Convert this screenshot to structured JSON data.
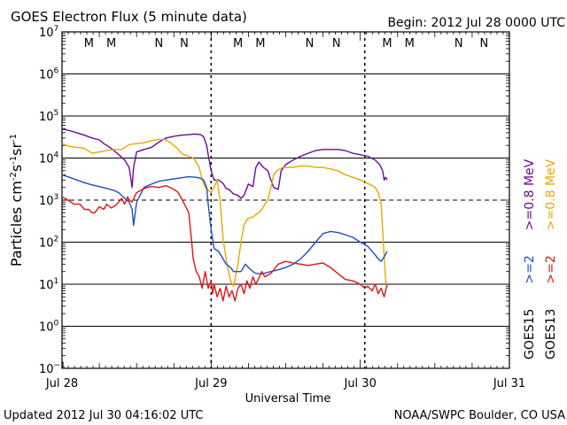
{
  "chart_data": {
    "type": "line",
    "title": "GOES Electron Flux (5 minute data)",
    "begin_label": "Begin: 2012 Jul 28 0000 UTC",
    "xlabel": "Universal Time",
    "ylabel_main": "Particles cm",
    "ylabel_sup1": "-2",
    "ylabel_mid1": "s",
    "ylabel_sup2": "-1",
    "ylabel_mid2": "sr",
    "ylabel_sup3": "-1",
    "y_scale": "log",
    "ylim_exp": [
      -1,
      7
    ],
    "y_ticks": [
      {
        "base": "10",
        "exp": "7"
      },
      {
        "base": "10",
        "exp": "6"
      },
      {
        "base": "10",
        "exp": "5"
      },
      {
        "base": "10",
        "exp": "4"
      },
      {
        "base": "10",
        "exp": "3"
      },
      {
        "base": "10",
        "exp": "2"
      },
      {
        "base": "10",
        "exp": "1"
      },
      {
        "base": "10",
        "exp": "0"
      },
      {
        "base": "10",
        "exp": "−1"
      }
    ],
    "x_range_days": [
      0,
      3
    ],
    "x_ticks": [
      "Jul 28",
      "Jul 29",
      "Jul 30",
      "Jul 31"
    ],
    "threshold_exp": 3,
    "markers": [
      {
        "label": "M",
        "day": 0.18,
        "color": "#d42020"
      },
      {
        "label": "M",
        "day": 0.33,
        "color": "#1f4fbf"
      },
      {
        "label": "N",
        "day": 0.65,
        "color": "#d42020"
      },
      {
        "label": "N",
        "day": 0.82,
        "color": "#1f4fbf"
      },
      {
        "label": "M",
        "day": 1.18,
        "color": "#d42020"
      },
      {
        "label": "M",
        "day": 1.33,
        "color": "#1f4fbf"
      },
      {
        "label": "N",
        "day": 1.66,
        "color": "#d42020"
      },
      {
        "label": "N",
        "day": 1.84,
        "color": "#1f4fbf"
      },
      {
        "label": "M",
        "day": 2.18,
        "color": "#d42020"
      },
      {
        "label": "M",
        "day": 2.33,
        "color": "#1f4fbf"
      },
      {
        "label": "N",
        "day": 2.66,
        "color": "#d42020"
      },
      {
        "label": "N",
        "day": 2.83,
        "color": "#1f4fbf"
      }
    ],
    "noon_lines_days": [
      1.0,
      2.03
    ],
    "series": [
      {
        "name": ">=0.8 MeV GOES15",
        "color": "#6a0a9a",
        "x": [
          0.0,
          0.05,
          0.1,
          0.15,
          0.2,
          0.25,
          0.28,
          0.3,
          0.34,
          0.38,
          0.42,
          0.45,
          0.47,
          0.48,
          0.5,
          0.55,
          0.6,
          0.65,
          0.7,
          0.75,
          0.8,
          0.85,
          0.88,
          0.9,
          0.93,
          0.95,
          0.97,
          0.98,
          1.0,
          1.02,
          1.05,
          1.08,
          1.1,
          1.12,
          1.15,
          1.18,
          1.2,
          1.22,
          1.25,
          1.28,
          1.3,
          1.32,
          1.35,
          1.38,
          1.4,
          1.42,
          1.45,
          1.47,
          1.5,
          1.55,
          1.6,
          1.65,
          1.7,
          1.75,
          1.8,
          1.85,
          1.9,
          1.95,
          2.0,
          2.05,
          2.1,
          2.13,
          2.15,
          2.16,
          2.17,
          2.18
        ],
        "y": [
          49000.0,
          45000.0,
          40000.0,
          35000.0,
          30000.0,
          27000.0,
          22000.0,
          20000.0,
          16000.0,
          12000.0,
          9000.0,
          6000.0,
          2000.0,
          6000.0,
          14000.0,
          16000.0,
          18000.0,
          24000.0,
          30000.0,
          33000.0,
          35000.0,
          36000.0,
          37000.0,
          37000.0,
          36000.0,
          32000.0,
          20000.0,
          12000.0,
          5000.0,
          3000.0,
          3000.0,
          2500.0,
          1900.0,
          1800.0,
          1400.0,
          1300.0,
          1100.0,
          1300.0,
          2400.0,
          2100.0,
          6000.0,
          8000.0,
          6000.0,
          5000.0,
          3000.0,
          2000.0,
          1800.0,
          5000.0,
          7000.0,
          9000.0,
          11000.0,
          13000.0,
          15000.0,
          16000.0,
          16000.0,
          16000.0,
          15000.0,
          13000.0,
          12000.0,
          11000.0,
          9000.0,
          7000.0,
          5000.0,
          3000.0,
          3500.0,
          3000.0
        ]
      },
      {
        "name": ">=0.8 MeV GOES13",
        "color": "#eaa800",
        "x": [
          0.0,
          0.05,
          0.1,
          0.15,
          0.2,
          0.25,
          0.3,
          0.35,
          0.4,
          0.45,
          0.5,
          0.55,
          0.6,
          0.65,
          0.7,
          0.72,
          0.75,
          0.78,
          0.8,
          0.82,
          0.85,
          0.88,
          0.9,
          0.92,
          0.94,
          0.96,
          1.0,
          1.02,
          1.04,
          1.06,
          1.08,
          1.1,
          1.13,
          1.15,
          1.18,
          1.2,
          1.22,
          1.24,
          1.26,
          1.28,
          1.3,
          1.32,
          1.34,
          1.36,
          1.38,
          1.4,
          1.42,
          1.44,
          1.46,
          1.48,
          1.5,
          1.55,
          1.6,
          1.65,
          1.7,
          1.75,
          1.8,
          1.85,
          1.9,
          1.95,
          2.0,
          2.05,
          2.08,
          2.1,
          2.12,
          2.14,
          2.15,
          2.16,
          2.17,
          2.18
        ],
        "y": [
          22000.0,
          19000.0,
          18000.0,
          17000.0,
          13000.0,
          14000.0,
          15000.0,
          16000.0,
          16000.0,
          21000.0,
          22000.0,
          23000.0,
          26000.0,
          28000.0,
          27000.0,
          24000.0,
          20000.0,
          16000.0,
          13000.0,
          12000.0,
          11000.0,
          10000.0,
          8000.0,
          6000.0,
          3000.0,
          2000.0,
          1500.0,
          2000.0,
          3000.0,
          1000.0,
          120.0,
          40,
          12,
          9,
          30,
          100,
          250,
          350,
          380,
          400,
          450,
          500,
          600,
          800,
          1000,
          2000,
          4000,
          5000,
          5500,
          6000,
          6000,
          6000,
          6500,
          6500,
          6000,
          6000,
          5500,
          5000,
          4000,
          3500,
          3000,
          2500,
          2200,
          2000,
          1500,
          800,
          200,
          50,
          12,
          9
        ]
      },
      {
        "name": ">=2 MeV GOES15",
        "color": "#1f4fbf",
        "x": [
          0.0,
          0.05,
          0.1,
          0.15,
          0.2,
          0.25,
          0.3,
          0.35,
          0.38,
          0.4,
          0.42,
          0.45,
          0.47,
          0.48,
          0.5,
          0.55,
          0.6,
          0.65,
          0.7,
          0.75,
          0.8,
          0.85,
          0.9,
          0.93,
          0.95,
          0.97,
          0.98,
          1.0,
          1.02,
          1.05,
          1.08,
          1.1,
          1.13,
          1.15,
          1.18,
          1.2,
          1.23,
          1.25,
          1.28,
          1.3,
          1.35,
          1.4,
          1.45,
          1.5,
          1.55,
          1.6,
          1.65,
          1.7,
          1.75,
          1.8,
          1.85,
          1.9,
          1.95,
          2.0,
          2.05,
          2.08,
          2.1,
          2.12,
          2.14,
          2.16,
          2.18
        ],
        "y": [
          4000.0,
          3500.0,
          3000.0,
          2600.0,
          2300.0,
          2100.0,
          1900.0,
          1700.0,
          1500.0,
          1300.0,
          1100.0,
          900,
          600,
          250,
          900,
          2000.0,
          2400.0,
          2800.0,
          3000.0,
          3200.0,
          3400.0,
          3600.0,
          3500.0,
          3300.0,
          3000.0,
          2000.0,
          800,
          200,
          70,
          60,
          40,
          30,
          25,
          20,
          20,
          20,
          30,
          25,
          20,
          18,
          18,
          20,
          22,
          25,
          30,
          40,
          60,
          100,
          160,
          180,
          170,
          150,
          130,
          100,
          80,
          60,
          50,
          40,
          35,
          45,
          60
        ]
      },
      {
        "name": ">=2 MeV GOES13",
        "color": "#e01515",
        "x": [
          0.0,
          0.04,
          0.08,
          0.12,
          0.15,
          0.18,
          0.2,
          0.22,
          0.25,
          0.28,
          0.3,
          0.33,
          0.36,
          0.38,
          0.4,
          0.42,
          0.44,
          0.45,
          0.47,
          0.5,
          0.55,
          0.6,
          0.65,
          0.7,
          0.75,
          0.78,
          0.8,
          0.83,
          0.85,
          0.87,
          0.88,
          0.9,
          0.92,
          0.94,
          0.96,
          0.98,
          1.0,
          1.01,
          1.02,
          1.04,
          1.06,
          1.08,
          1.1,
          1.12,
          1.14,
          1.16,
          1.18,
          1.2,
          1.22,
          1.24,
          1.26,
          1.28,
          1.3,
          1.32,
          1.34,
          1.36,
          1.4,
          1.45,
          1.5,
          1.55,
          1.6,
          1.65,
          1.7,
          1.75,
          1.8,
          1.85,
          1.9,
          1.95,
          2.0,
          2.03,
          2.05,
          2.08,
          2.1,
          2.12,
          2.14,
          2.16,
          2.18
        ],
        "y": [
          1200.0,
          1000.0,
          800,
          800,
          600,
          600,
          500,
          500,
          700,
          600,
          800,
          650,
          750,
          900,
          1100,
          800,
          1200,
          1000,
          900,
          1500,
          1900,
          2100,
          2000,
          2200,
          1800,
          1500,
          1100,
          700,
          500,
          100,
          40,
          20,
          15,
          8,
          20,
          8,
          12,
          6,
          10,
          5,
          8,
          4,
          9,
          5,
          7,
          4,
          8,
          10,
          6,
          12,
          8,
          15,
          10,
          14,
          20,
          15,
          18,
          30,
          35,
          32,
          30,
          28,
          30,
          32,
          25,
          18,
          13,
          12,
          10,
          8,
          9,
          7,
          10,
          6,
          8,
          5,
          10
        ]
      }
    ],
    "legend": {
      "col1": [
        ">=0.8 MeV",
        ">=2",
        "GOES15"
      ],
      "col2": [
        ">=0.8 MeV",
        ">=2",
        "GOES13"
      ]
    }
  },
  "footer": {
    "updated": "Updated 2012 Jul 30 04:16:02 UTC",
    "credit": "NOAA/SWPC Boulder, CO USA"
  }
}
